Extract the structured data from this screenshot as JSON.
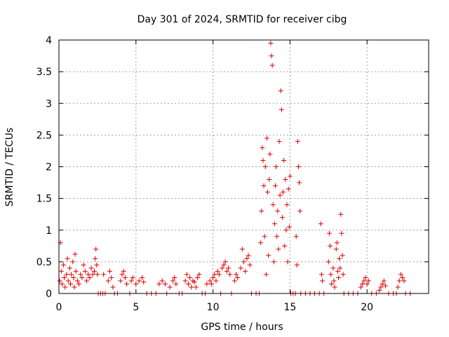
{
  "chart_data": {
    "type": "scatter",
    "title": "Day 301 of 2024, SRMTID for receiver cibg",
    "xlabel": "GPS time / hours",
    "ylabel": "SRMTID / TECUs",
    "xlim": [
      0,
      24
    ],
    "ylim": [
      0,
      4
    ],
    "xticks": [
      0,
      5,
      10,
      15,
      20
    ],
    "xtick_labels": [
      "0",
      "5",
      "10",
      "15",
      "20"
    ],
    "yticks": [
      0,
      0.5,
      1,
      1.5,
      2,
      2.5,
      3,
      3.5,
      4
    ],
    "ytick_labels": [
      "0",
      "0.5",
      "1",
      "1.5",
      "2",
      "2.5",
      "3",
      "3.5",
      "4"
    ],
    "grid": true,
    "marker": "+",
    "series": [
      {
        "name": "SRMTID",
        "color": "#dd0000",
        "points": [
          [
            0.05,
            0.2
          ],
          [
            0.1,
            0.8
          ],
          [
            0.15,
            0.35
          ],
          [
            0.2,
            0.15
          ],
          [
            0.3,
            0.45
          ],
          [
            0.35,
            0.25
          ],
          [
            0.4,
            0.1
          ],
          [
            0.5,
            0.3
          ],
          [
            0.55,
            0.55
          ],
          [
            0.6,
            0.2
          ],
          [
            0.7,
            0.4
          ],
          [
            0.75,
            0.15
          ],
          [
            0.8,
            0.3
          ],
          [
            0.9,
            0.5
          ],
          [
            0.95,
            0.25
          ],
          [
            1.0,
            0.1
          ],
          [
            1.05,
            0.62
          ],
          [
            1.1,
            0.35
          ],
          [
            1.2,
            0.2
          ],
          [
            1.3,
            0.15
          ],
          [
            1.4,
            0.3
          ],
          [
            1.5,
            0.25
          ],
          [
            1.6,
            0.45
          ],
          [
            1.7,
            0.35
          ],
          [
            1.8,
            0.2
          ],
          [
            1.9,
            0.3
          ],
          [
            2.0,
            0.25
          ],
          [
            2.1,
            0.4
          ],
          [
            2.2,
            0.3
          ],
          [
            2.3,
            0.35
          ],
          [
            2.35,
            0.55
          ],
          [
            2.4,
            0.7
          ],
          [
            2.45,
            0.45
          ],
          [
            2.5,
            0.3
          ],
          [
            2.55,
            0.0
          ],
          [
            2.7,
            0.0
          ],
          [
            2.85,
            0.0
          ],
          [
            2.9,
            0.3
          ],
          [
            3.0,
            0.0
          ],
          [
            3.2,
            0.2
          ],
          [
            3.3,
            0.35
          ],
          [
            3.4,
            0.25
          ],
          [
            3.5,
            0.1
          ],
          [
            3.6,
            0.0
          ],
          [
            3.8,
            0.0
          ],
          [
            4.0,
            0.2
          ],
          [
            4.1,
            0.3
          ],
          [
            4.2,
            0.35
          ],
          [
            4.3,
            0.25
          ],
          [
            4.4,
            0.15
          ],
          [
            4.6,
            0.0
          ],
          [
            4.7,
            0.2
          ],
          [
            4.8,
            0.25
          ],
          [
            5.0,
            0.15
          ],
          [
            5.2,
            0.2
          ],
          [
            5.4,
            0.25
          ],
          [
            5.5,
            0.18
          ],
          [
            5.7,
            0.0
          ],
          [
            6.0,
            0.0
          ],
          [
            6.3,
            0.0
          ],
          [
            6.5,
            0.15
          ],
          [
            6.7,
            0.2
          ],
          [
            6.9,
            0.15
          ],
          [
            7.0,
            0.0
          ],
          [
            7.2,
            0.1
          ],
          [
            7.4,
            0.2
          ],
          [
            7.5,
            0.25
          ],
          [
            7.6,
            0.15
          ],
          [
            7.8,
            0.0
          ],
          [
            8.0,
            0.0
          ],
          [
            8.2,
            0.2
          ],
          [
            8.3,
            0.3
          ],
          [
            8.4,
            0.15
          ],
          [
            8.5,
            0.25
          ],
          [
            8.6,
            0.1
          ],
          [
            8.7,
            0.2
          ],
          [
            8.8,
            0.18
          ],
          [
            8.9,
            0.1
          ],
          [
            9.0,
            0.25
          ],
          [
            9.1,
            0.3
          ],
          [
            9.3,
            0.0
          ],
          [
            9.5,
            0.0
          ],
          [
            9.6,
            0.15
          ],
          [
            9.8,
            0.2
          ],
          [
            9.9,
            0.15
          ],
          [
            10.0,
            0.25
          ],
          [
            10.1,
            0.3
          ],
          [
            10.2,
            0.2
          ],
          [
            10.3,
            0.35
          ],
          [
            10.4,
            0.3
          ],
          [
            10.5,
            0.0
          ],
          [
            10.6,
            0.4
          ],
          [
            10.7,
            0.45
          ],
          [
            10.8,
            0.5
          ],
          [
            10.9,
            0.35
          ],
          [
            11.0,
            0.4
          ],
          [
            11.1,
            0.3
          ],
          [
            11.2,
            0.0
          ],
          [
            11.4,
            0.2
          ],
          [
            11.5,
            0.3
          ],
          [
            11.6,
            0.25
          ],
          [
            11.8,
            0.4
          ],
          [
            11.9,
            0.7
          ],
          [
            12.0,
            0.5
          ],
          [
            12.1,
            0.35
          ],
          [
            12.2,
            0.55
          ],
          [
            12.3,
            0.6
          ],
          [
            12.4,
            0.45
          ],
          [
            12.5,
            0.0
          ],
          [
            12.8,
            0.0
          ],
          [
            13.0,
            0.0
          ],
          [
            13.1,
            0.8
          ],
          [
            13.15,
            1.3
          ],
          [
            13.2,
            2.3
          ],
          [
            13.25,
            2.1
          ],
          [
            13.3,
            1.7
          ],
          [
            13.35,
            0.9
          ],
          [
            13.4,
            2.0
          ],
          [
            13.45,
            0.3
          ],
          [
            13.5,
            2.45
          ],
          [
            13.55,
            1.6
          ],
          [
            13.6,
            0.6
          ],
          [
            13.65,
            1.8
          ],
          [
            13.7,
            2.2
          ],
          [
            13.75,
            3.95
          ],
          [
            13.8,
            3.75
          ],
          [
            13.85,
            3.6
          ],
          [
            13.9,
            1.4
          ],
          [
            13.95,
            0.5
          ],
          [
            14.0,
            1.1
          ],
          [
            14.05,
            1.7
          ],
          [
            14.1,
            2.0
          ],
          [
            14.15,
            0.9
          ],
          [
            14.2,
            1.3
          ],
          [
            14.25,
            0.7
          ],
          [
            14.3,
            2.4
          ],
          [
            14.35,
            1.55
          ],
          [
            14.4,
            3.2
          ],
          [
            14.45,
            2.9
          ],
          [
            14.5,
            1.2
          ],
          [
            14.55,
            1.6
          ],
          [
            14.6,
            2.1
          ],
          [
            14.65,
            0.75
          ],
          [
            14.7,
            1.8
          ],
          [
            14.75,
            1.0
          ],
          [
            14.8,
            1.4
          ],
          [
            14.85,
            0.5
          ],
          [
            14.9,
            1.65
          ],
          [
            14.95,
            1.05
          ],
          [
            15.0,
            1.85
          ],
          [
            15.05,
            0.0
          ],
          [
            15.2,
            0.0
          ],
          [
            15.35,
            0.0
          ],
          [
            15.4,
            0.9
          ],
          [
            15.45,
            0.45
          ],
          [
            15.5,
            2.4
          ],
          [
            15.55,
            2.0
          ],
          [
            15.6,
            1.75
          ],
          [
            15.65,
            1.3
          ],
          [
            15.7,
            0.0
          ],
          [
            16.0,
            0.0
          ],
          [
            16.3,
            0.0
          ],
          [
            16.6,
            0.0
          ],
          [
            16.9,
            0.0
          ],
          [
            17.0,
            1.1
          ],
          [
            17.05,
            0.3
          ],
          [
            17.1,
            0.2
          ],
          [
            17.2,
            0.0
          ],
          [
            17.5,
            0.5
          ],
          [
            17.55,
            0.95
          ],
          [
            17.6,
            0.75
          ],
          [
            17.65,
            0.3
          ],
          [
            17.7,
            0.15
          ],
          [
            17.8,
            0.4
          ],
          [
            17.85,
            0.2
          ],
          [
            17.9,
            0.1
          ],
          [
            18.0,
            0.7
          ],
          [
            18.05,
            0.8
          ],
          [
            18.1,
            0.35
          ],
          [
            18.15,
            0.25
          ],
          [
            18.2,
            0.55
          ],
          [
            18.25,
            0.4
          ],
          [
            18.3,
            1.25
          ],
          [
            18.35,
            0.95
          ],
          [
            18.4,
            0.6
          ],
          [
            18.45,
            0.3
          ],
          [
            18.5,
            0.0
          ],
          [
            18.8,
            0.0
          ],
          [
            19.1,
            0.0
          ],
          [
            19.4,
            0.0
          ],
          [
            19.6,
            0.1
          ],
          [
            19.7,
            0.15
          ],
          [
            19.8,
            0.2
          ],
          [
            19.9,
            0.25
          ],
          [
            20.0,
            0.15
          ],
          [
            20.1,
            0.2
          ],
          [
            20.3,
            0.0
          ],
          [
            20.6,
            0.0
          ],
          [
            20.8,
            0.05
          ],
          [
            20.9,
            0.1
          ],
          [
            21.0,
            0.15
          ],
          [
            21.1,
            0.2
          ],
          [
            21.2,
            0.12
          ],
          [
            21.4,
            0.0
          ],
          [
            21.7,
            0.0
          ],
          [
            21.9,
            0.0
          ],
          [
            22.0,
            0.1
          ],
          [
            22.1,
            0.2
          ],
          [
            22.2,
            0.3
          ],
          [
            22.3,
            0.25
          ],
          [
            22.4,
            0.2
          ],
          [
            22.5,
            0.0
          ],
          [
            22.8,
            0.0
          ]
        ]
      }
    ]
  }
}
